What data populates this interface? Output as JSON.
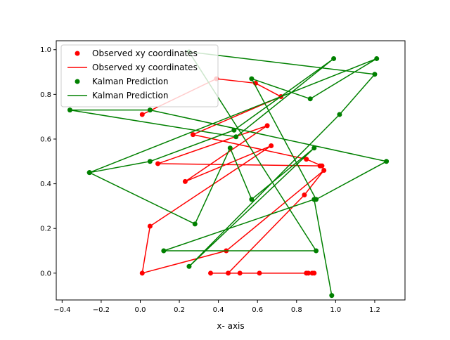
{
  "chart_data": {
    "type": "line",
    "title": "",
    "xlabel": "x- axis",
    "ylabel": "",
    "xlim": [
      -0.43,
      1.355
    ],
    "ylim": [
      -0.12,
      1.04
    ],
    "xticks": [
      -0.4,
      -0.2,
      0.0,
      0.2,
      0.4,
      0.6,
      0.8,
      1.0,
      1.2
    ],
    "xtick_labels": [
      "−0.4",
      "−0.2",
      "0.0",
      "0.2",
      "0.4",
      "0.6",
      "0.8",
      "1.0",
      "1.2"
    ],
    "yticks": [
      0.0,
      0.2,
      0.4,
      0.6,
      0.8,
      1.0
    ],
    "ytick_labels": [
      "0.0",
      "0.2",
      "0.4",
      "0.6",
      "0.8",
      "1.0"
    ],
    "grid": false,
    "legend_position": "top-left",
    "legend": [
      {
        "label": "Observed xy coordinates",
        "style": "marker",
        "color": "#ff0000"
      },
      {
        "label": "Observed xy coordinates",
        "style": "line",
        "color": "#ff0000"
      },
      {
        "label": "Kalman Prediction",
        "style": "marker",
        "color": "#008000"
      },
      {
        "label": "Kalman Prediction",
        "style": "line",
        "color": "#008000"
      }
    ],
    "series": [
      {
        "name": "Observed xy coordinates",
        "color": "#ff0000",
        "x": [
          0.01,
          0.39,
          0.59,
          0.72,
          0.27,
          0.85,
          0.93,
          0.92,
          0.09,
          0.65,
          0.23,
          0.67,
          0.05,
          0.01,
          0.44,
          0.94,
          0.84,
          0.45,
          0.51,
          0.61,
          0.89,
          0.85,
          0.86,
          0.88,
          0.36
        ],
        "y": [
          0.71,
          0.87,
          0.85,
          0.79,
          0.62,
          0.51,
          0.48,
          0.48,
          0.49,
          0.66,
          0.41,
          0.57,
          0.21,
          0.0,
          0.1,
          0.46,
          0.35,
          0.0,
          0.0,
          0.0,
          0.0,
          0.0,
          0.0,
          0.0,
          0.0
        ]
      },
      {
        "name": "Kalman Prediction",
        "color": "#008000",
        "x": [
          -0.26,
          0.05,
          0.48,
          0.99,
          0.49,
          -0.36,
          0.05,
          1.26,
          0.9,
          0.57,
          0.87,
          1.21,
          -0.26,
          0.28,
          0.46,
          0.57,
          0.89,
          0.25,
          1.02,
          1.2,
          0.25,
          0.9,
          0.12,
          0.89,
          0.98
        ],
        "y": [
          0.45,
          0.5,
          0.64,
          0.96,
          0.61,
          0.73,
          0.73,
          0.5,
          0.33,
          0.87,
          0.78,
          0.96,
          0.45,
          0.22,
          0.56,
          0.33,
          0.56,
          0.03,
          0.71,
          0.89,
          0.99,
          0.1,
          0.1,
          0.33,
          -0.1
        ]
      }
    ]
  }
}
